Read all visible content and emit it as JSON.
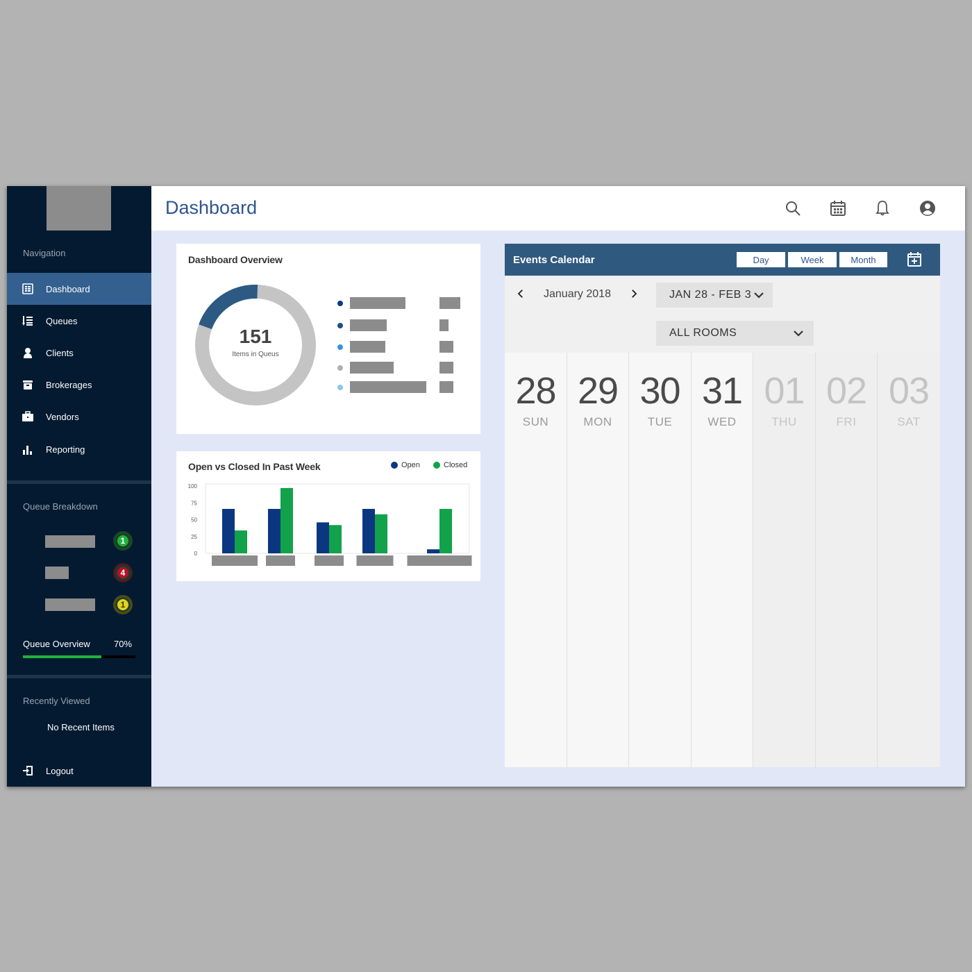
{
  "sidebar": {
    "navigation_label": "Navigation",
    "items": [
      {
        "label": "Dashboard",
        "icon": "dashboard-icon",
        "active": true
      },
      {
        "label": "Queues",
        "icon": "queue-icon",
        "active": false
      },
      {
        "label": "Clients",
        "icon": "client-icon",
        "active": false
      },
      {
        "label": "Brokerages",
        "icon": "brokerage-icon",
        "active": false
      },
      {
        "label": "Vendors",
        "icon": "briefcase-icon",
        "active": false
      },
      {
        "label": "Reporting",
        "icon": "bar-chart-icon",
        "active": false
      }
    ],
    "queue_breakdown_label": "Queue Breakdown",
    "queue_breakdown": [
      {
        "count": "1",
        "status": "green"
      },
      {
        "count": "4",
        "status": "red"
      },
      {
        "count": "1",
        "status": "yellow"
      }
    ],
    "queue_overview_label": "Queue Overview",
    "queue_overview_pct": "70%",
    "queue_overview_fraction": 0.7,
    "recently_viewed_label": "Recently Viewed",
    "no_recent": "No Recent Items",
    "logout_label": "Logout"
  },
  "header": {
    "title": "Dashboard",
    "icons": [
      "search-icon",
      "calendar-icon",
      "bell-icon",
      "user-icon"
    ]
  },
  "overview": {
    "title": "Dashboard Overview",
    "total": "151",
    "total_label": "Items in Queus",
    "donut_fraction": 0.2,
    "colors": {
      "segment": "#2c5a82",
      "rest": "#c4c4c4"
    },
    "legend_colors": [
      "#0d3c84",
      "#1d4e80",
      "#3893dd",
      "#b0b0b0",
      "#8cc5ee"
    ]
  },
  "chart": {
    "title": "Open vs Closed In Past Week",
    "legend_open": "Open",
    "legend_closed": "Closed",
    "colors": {
      "open": "#0a3780",
      "closed": "#12a24b"
    },
    "chart_data": {
      "type": "bar",
      "title": "Open vs Closed In Past Week",
      "yticks": [
        "100",
        "75",
        "50",
        "25",
        "0"
      ],
      "ylim": [
        0,
        100
      ],
      "series": [
        {
          "name": "Open",
          "values": [
            66,
            66,
            46,
            66,
            6
          ]
        },
        {
          "name": "Closed",
          "values": [
            34,
            97,
            42,
            58,
            66
          ]
        }
      ]
    }
  },
  "calendar": {
    "title": "Events Calendar",
    "views": [
      "Day",
      "Week",
      "Month"
    ],
    "month": "January 2018",
    "range": "JAN 28 - FEB 3",
    "rooms": "ALL ROOMS",
    "days": [
      {
        "num": "28",
        "name": "SUN",
        "current": true
      },
      {
        "num": "29",
        "name": "MON",
        "current": true
      },
      {
        "num": "30",
        "name": "TUE",
        "current": true
      },
      {
        "num": "31",
        "name": "WED",
        "current": true
      },
      {
        "num": "01",
        "name": "THU",
        "current": false
      },
      {
        "num": "02",
        "name": "FRI",
        "current": false
      },
      {
        "num": "03",
        "name": "SAT",
        "current": false
      }
    ]
  }
}
